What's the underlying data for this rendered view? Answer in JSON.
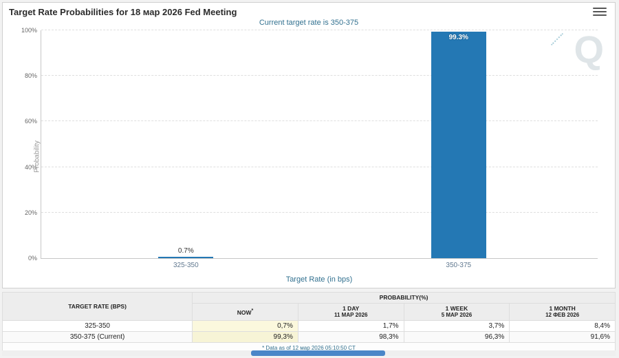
{
  "header": {
    "title": "Target Rate Probabilities for 18 мар 2026 Fed Meeting"
  },
  "chart": {
    "subtitle": "Current target rate is 350-375",
    "y_ticks": [
      "0%",
      "20%",
      "40%",
      "60%",
      "80%",
      "100%"
    ],
    "watermark_letter": "Q"
  },
  "chart_data": {
    "type": "bar",
    "title": "Target Rate Probabilities for 18 мар 2026 Fed Meeting",
    "categories": [
      "325-350",
      "350-375"
    ],
    "values": [
      0.7,
      99.3
    ],
    "bar_labels": [
      "0.7%",
      "99.3%"
    ],
    "xlabel": "Target Rate (in bps)",
    "ylabel": "Probability",
    "ylim": [
      0,
      100
    ],
    "bar_color": "#2478b4",
    "grid": "horizontal-dashed",
    "legend": "none"
  },
  "table": {
    "col1_header": "TARGET RATE (BPS)",
    "group_header": "PROBABILITY(%)",
    "columns": [
      {
        "label": "NOW",
        "sup": "*",
        "sub": ""
      },
      {
        "label": "1 DAY",
        "sup": "",
        "sub": "11 МАР 2026"
      },
      {
        "label": "1 WEEK",
        "sup": "",
        "sub": "5 МАР 2026"
      },
      {
        "label": "1 MONTH",
        "sup": "",
        "sub": "12 ФЕВ 2026"
      }
    ],
    "rows": [
      {
        "rate": "325-350",
        "values": [
          "0,7%",
          "1,7%",
          "3,7%",
          "8,4%"
        ]
      },
      {
        "rate": "350-375 (Current)",
        "values": [
          "99,3%",
          "98,3%",
          "96,3%",
          "91,6%"
        ]
      }
    ],
    "footnote": "* Data as of 12 мар 2026 05:10:50 CT"
  }
}
